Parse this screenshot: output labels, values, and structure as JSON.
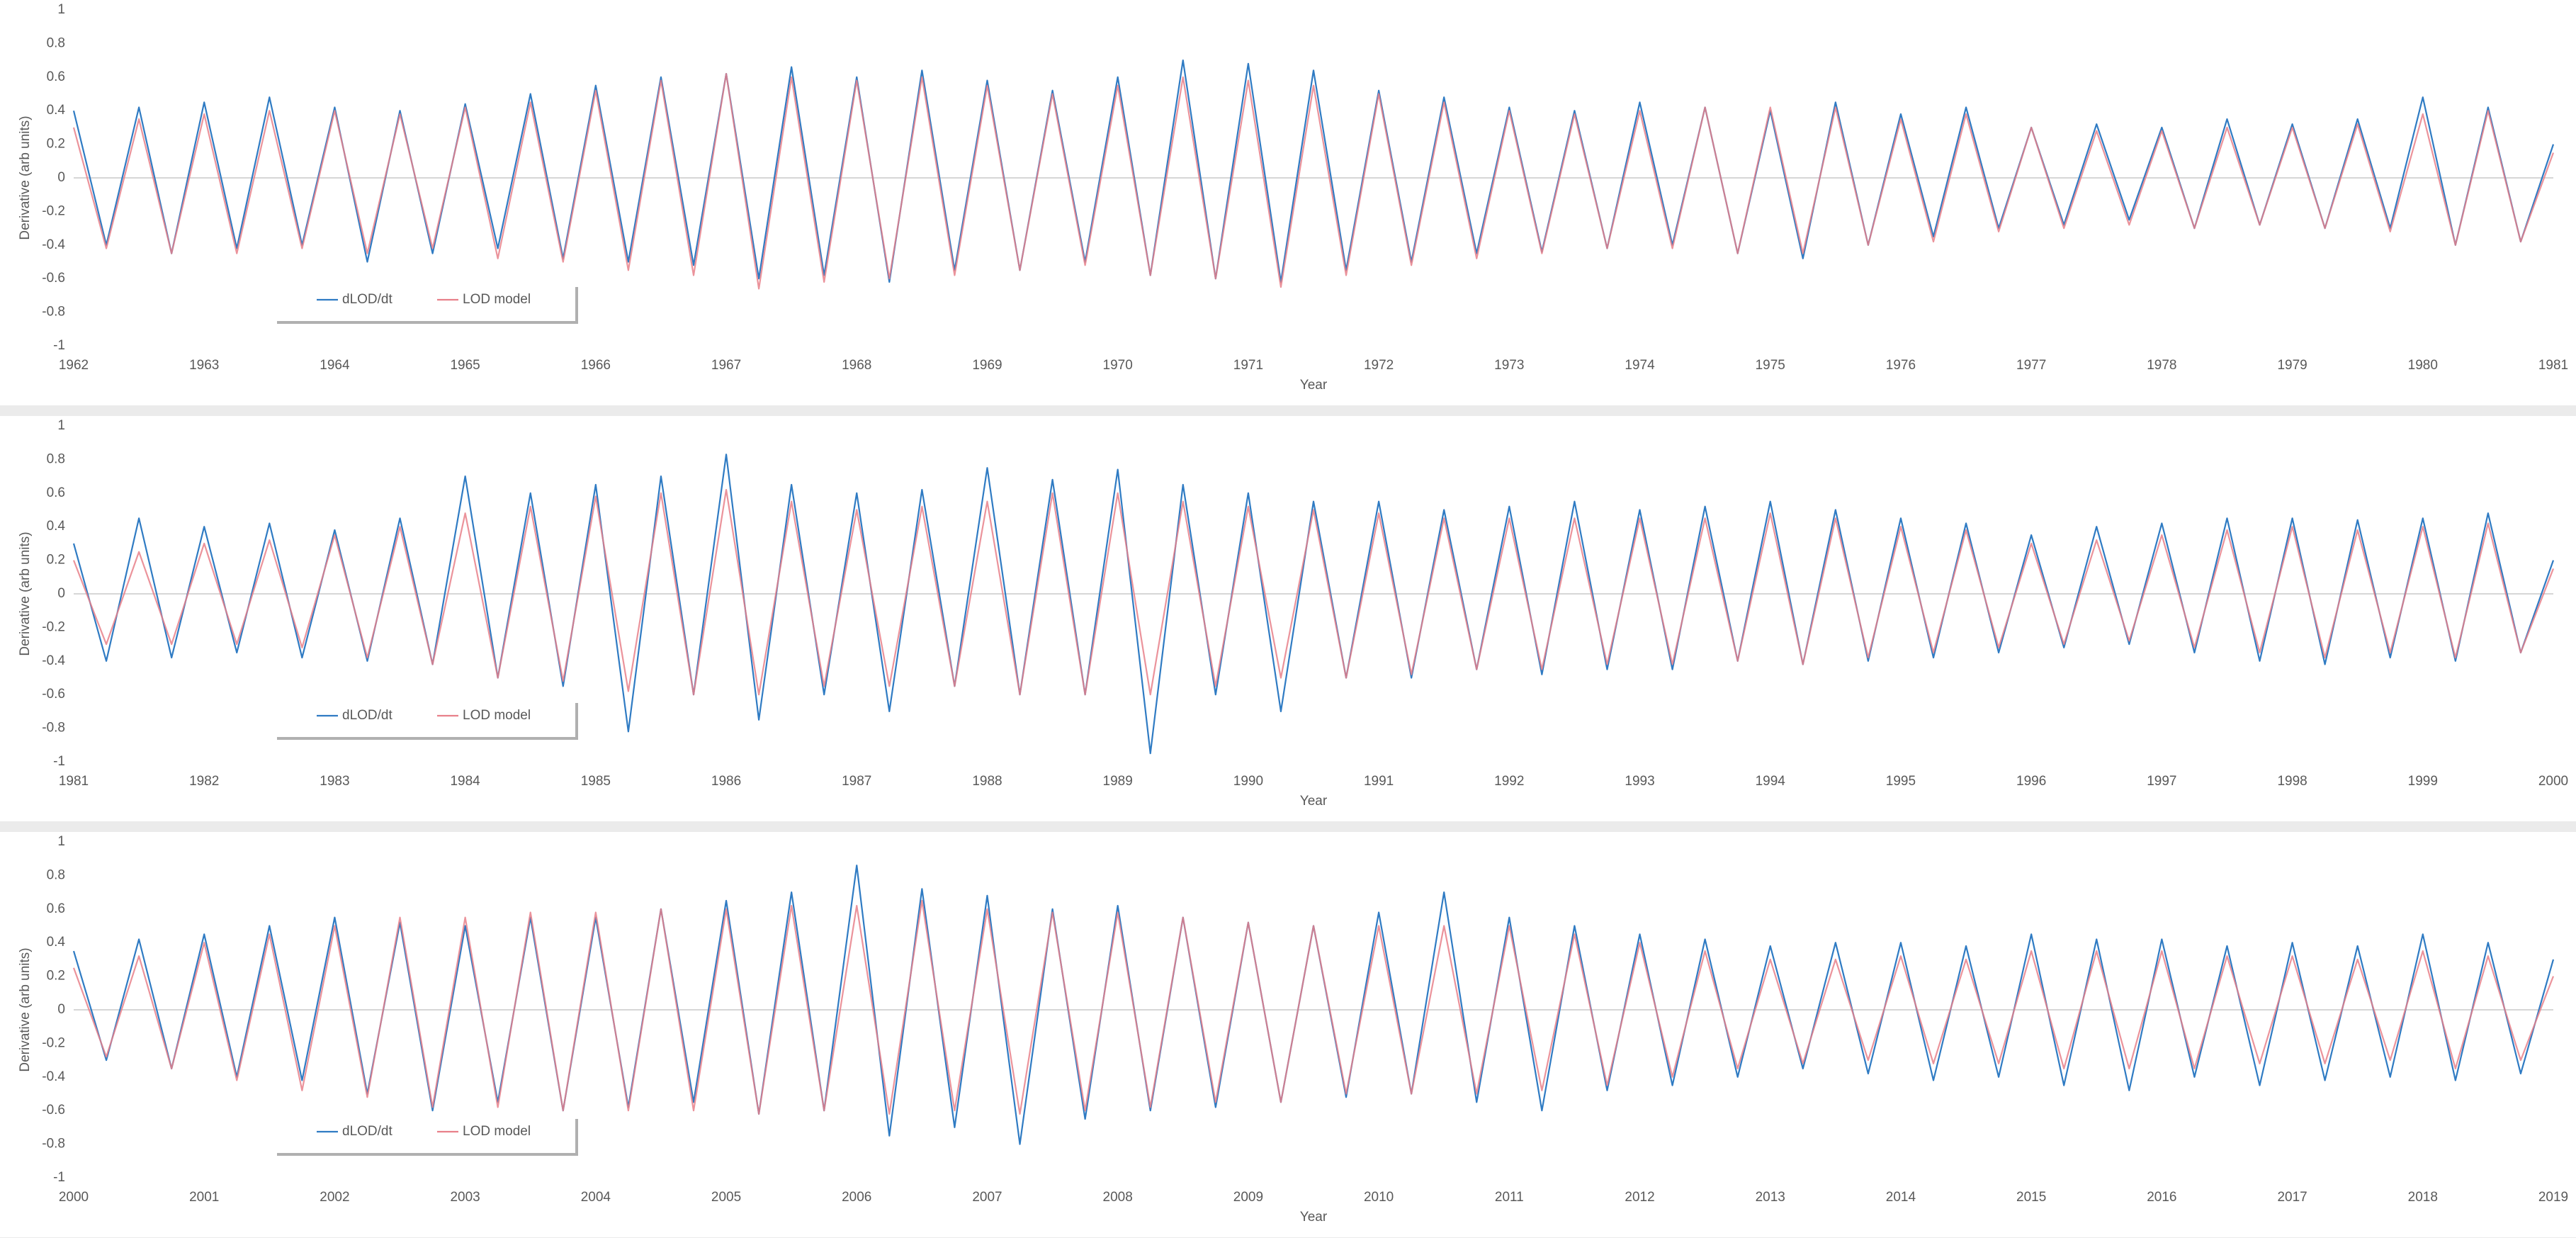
{
  "chart_data": [
    {
      "type": "line",
      "xlabel": "Year",
      "ylabel": "Derivative (arb units)",
      "xlim": [
        1962,
        1981
      ],
      "ylim": [
        -1,
        1
      ],
      "xticks": [
        1962,
        1963,
        1964,
        1965,
        1966,
        1967,
        1968,
        1969,
        1970,
        1971,
        1972,
        1973,
        1974,
        1975,
        1976,
        1977,
        1978,
        1979,
        1980,
        1981
      ],
      "yticks": [
        -1,
        -0.8,
        -0.6,
        -0.4,
        -0.2,
        0,
        0.2,
        0.4,
        0.6,
        0.8,
        1
      ],
      "zero_line": true,
      "legend": "lower left",
      "x": [
        1962,
        1962.25,
        1962.5,
        1962.75,
        1963,
        1963.25,
        1963.5,
        1963.75,
        1964,
        1964.25,
        1964.5,
        1964.75,
        1965,
        1965.25,
        1965.5,
        1965.75,
        1966,
        1966.25,
        1966.5,
        1966.75,
        1967,
        1967.25,
        1967.5,
        1967.75,
        1968,
        1968.25,
        1968.5,
        1968.75,
        1969,
        1969.25,
        1969.5,
        1969.75,
        1970,
        1970.25,
        1970.5,
        1970.75,
        1971,
        1971.25,
        1971.5,
        1971.75,
        1972,
        1972.25,
        1972.5,
        1972.75,
        1973,
        1973.25,
        1973.5,
        1973.75,
        1974,
        1974.25,
        1974.5,
        1974.75,
        1975,
        1975.25,
        1975.5,
        1975.75,
        1976,
        1976.25,
        1976.5,
        1976.75,
        1977,
        1977.25,
        1977.5,
        1977.75,
        1978,
        1978.25,
        1978.5,
        1978.75,
        1979,
        1979.25,
        1979.5,
        1979.75,
        1980,
        1980.25,
        1980.5,
        1980.75,
        1981
      ],
      "series": [
        {
          "name": "dLOD/dt",
          "color": "#2f7bc3",
          "values": [
            0.4,
            -0.4,
            0.42,
            -0.45,
            0.45,
            -0.42,
            0.48,
            -0.4,
            0.42,
            -0.5,
            0.4,
            -0.45,
            0.44,
            -0.42,
            0.5,
            -0.48,
            0.55,
            -0.5,
            0.6,
            -0.52,
            0.62,
            -0.6,
            0.66,
            -0.58,
            0.6,
            -0.62,
            0.64,
            -0.55,
            0.58,
            -0.55,
            0.52,
            -0.5,
            0.6,
            -0.58,
            0.7,
            -0.6,
            0.68,
            -0.62,
            0.64,
            -0.55,
            0.52,
            -0.5,
            0.48,
            -0.45,
            0.42,
            -0.44,
            0.4,
            -0.42,
            0.45,
            -0.4,
            0.42,
            -0.45,
            0.4,
            -0.48,
            0.45,
            -0.4,
            0.38,
            -0.35,
            0.42,
            -0.3,
            0.3,
            -0.28,
            0.32,
            -0.25,
            0.3,
            -0.3,
            0.35,
            -0.28,
            0.32,
            -0.3,
            0.35,
            -0.3,
            0.48,
            -0.4,
            0.42,
            -0.38,
            0.2
          ]
        },
        {
          "name": "LOD model",
          "color": "#e8808a",
          "values": [
            0.3,
            -0.42,
            0.35,
            -0.45,
            0.38,
            -0.45,
            0.4,
            -0.42,
            0.4,
            -0.45,
            0.38,
            -0.42,
            0.42,
            -0.48,
            0.45,
            -0.5,
            0.52,
            -0.55,
            0.58,
            -0.58,
            0.62,
            -0.66,
            0.6,
            -0.62,
            0.58,
            -0.6,
            0.6,
            -0.58,
            0.55,
            -0.55,
            0.5,
            -0.52,
            0.55,
            -0.58,
            0.6,
            -0.6,
            0.58,
            -0.65,
            0.55,
            -0.58,
            0.5,
            -0.52,
            0.45,
            -0.48,
            0.4,
            -0.45,
            0.38,
            -0.42,
            0.4,
            -0.42,
            0.42,
            -0.45,
            0.42,
            -0.45,
            0.42,
            -0.4,
            0.35,
            -0.38,
            0.38,
            -0.32,
            0.3,
            -0.3,
            0.28,
            -0.28,
            0.28,
            -0.3,
            0.3,
            -0.28,
            0.3,
            -0.3,
            0.32,
            -0.32,
            0.38,
            -0.4,
            0.4,
            -0.38,
            0.15
          ]
        }
      ]
    },
    {
      "type": "line",
      "xlabel": "Year",
      "ylabel": "Derivative (arb units)",
      "xlim": [
        1981,
        2000
      ],
      "ylim": [
        -1,
        1
      ],
      "xticks": [
        1981,
        1982,
        1983,
        1984,
        1985,
        1986,
        1987,
        1988,
        1989,
        1990,
        1991,
        1992,
        1993,
        1994,
        1995,
        1996,
        1997,
        1998,
        1999,
        2000
      ],
      "yticks": [
        -1,
        -0.8,
        -0.6,
        -0.4,
        -0.2,
        0,
        0.2,
        0.4,
        0.6,
        0.8,
        1
      ],
      "zero_line": true,
      "legend": "lower left",
      "x": [
        1981,
        1981.25,
        1981.5,
        1981.75,
        1982,
        1982.25,
        1982.5,
        1982.75,
        1983,
        1983.25,
        1983.5,
        1983.75,
        1984,
        1984.25,
        1984.5,
        1984.75,
        1985,
        1985.25,
        1985.5,
        1985.75,
        1986,
        1986.25,
        1986.5,
        1986.75,
        1987,
        1987.25,
        1987.5,
        1987.75,
        1988,
        1988.25,
        1988.5,
        1988.75,
        1989,
        1989.25,
        1989.5,
        1989.75,
        1990,
        1990.25,
        1990.5,
        1990.75,
        1991,
        1991.25,
        1991.5,
        1991.75,
        1992,
        1992.25,
        1992.5,
        1992.75,
        1993,
        1993.25,
        1993.5,
        1993.75,
        1994,
        1994.25,
        1994.5,
        1994.75,
        1995,
        1995.25,
        1995.5,
        1995.75,
        1996,
        1996.25,
        1996.5,
        1996.75,
        1997,
        1997.25,
        1997.5,
        1997.75,
        1998,
        1998.25,
        1998.5,
        1998.75,
        1999,
        1999.25,
        1999.5,
        1999.75,
        2000
      ],
      "series": [
        {
          "name": "dLOD/dt",
          "color": "#2f7bc3",
          "values": [
            0.3,
            -0.4,
            0.45,
            -0.38,
            0.4,
            -0.35,
            0.42,
            -0.38,
            0.38,
            -0.4,
            0.45,
            -0.42,
            0.7,
            -0.5,
            0.6,
            -0.55,
            0.65,
            -0.82,
            0.7,
            -0.6,
            0.83,
            -0.75,
            0.65,
            -0.6,
            0.6,
            -0.7,
            0.62,
            -0.55,
            0.75,
            -0.6,
            0.68,
            -0.6,
            0.74,
            -0.95,
            0.65,
            -0.6,
            0.6,
            -0.7,
            0.55,
            -0.5,
            0.55,
            -0.5,
            0.5,
            -0.45,
            0.52,
            -0.48,
            0.55,
            -0.45,
            0.5,
            -0.45,
            0.52,
            -0.4,
            0.55,
            -0.42,
            0.5,
            -0.4,
            0.45,
            -0.38,
            0.42,
            -0.35,
            0.35,
            -0.32,
            0.4,
            -0.3,
            0.42,
            -0.35,
            0.45,
            -0.4,
            0.45,
            -0.42,
            0.44,
            -0.38,
            0.45,
            -0.4,
            0.48,
            -0.35,
            0.2
          ]
        },
        {
          "name": "LOD model",
          "color": "#e8808a",
          "values": [
            0.2,
            -0.3,
            0.25,
            -0.3,
            0.3,
            -0.3,
            0.32,
            -0.32,
            0.35,
            -0.38,
            0.4,
            -0.42,
            0.48,
            -0.5,
            0.52,
            -0.52,
            0.58,
            -0.58,
            0.6,
            -0.6,
            0.62,
            -0.6,
            0.55,
            -0.55,
            0.5,
            -0.55,
            0.52,
            -0.55,
            0.55,
            -0.6,
            0.6,
            -0.6,
            0.6,
            -0.6,
            0.55,
            -0.55,
            0.52,
            -0.5,
            0.5,
            -0.5,
            0.48,
            -0.48,
            0.45,
            -0.45,
            0.45,
            -0.45,
            0.45,
            -0.42,
            0.45,
            -0.42,
            0.45,
            -0.4,
            0.48,
            -0.42,
            0.45,
            -0.38,
            0.4,
            -0.35,
            0.38,
            -0.32,
            0.3,
            -0.3,
            0.32,
            -0.28,
            0.35,
            -0.32,
            0.38,
            -0.35,
            0.4,
            -0.38,
            0.38,
            -0.35,
            0.4,
            -0.38,
            0.42,
            -0.35,
            0.15
          ]
        }
      ]
    },
    {
      "type": "line",
      "xlabel": "Year",
      "ylabel": "Derivative (arb units)",
      "xlim": [
        2000,
        2019
      ],
      "ylim": [
        -1,
        1
      ],
      "xticks": [
        2000,
        2001,
        2002,
        2003,
        2004,
        2005,
        2006,
        2007,
        2008,
        2009,
        2010,
        2011,
        2012,
        2013,
        2014,
        2015,
        2016,
        2017,
        2018,
        2019
      ],
      "yticks": [
        -1,
        -0.8,
        -0.6,
        -0.4,
        -0.2,
        0,
        0.2,
        0.4,
        0.6,
        0.8,
        1
      ],
      "zero_line": true,
      "legend": "lower left",
      "x": [
        2000,
        2000.25,
        2000.5,
        2000.75,
        2001,
        2001.25,
        2001.5,
        2001.75,
        2002,
        2002.25,
        2002.5,
        2002.75,
        2003,
        2003.25,
        2003.5,
        2003.75,
        2004,
        2004.25,
        2004.5,
        2004.75,
        2005,
        2005.25,
        2005.5,
        2005.75,
        2006,
        2006.25,
        2006.5,
        2006.75,
        2007,
        2007.25,
        2007.5,
        2007.75,
        2008,
        2008.25,
        2008.5,
        2008.75,
        2009,
        2009.25,
        2009.5,
        2009.75,
        2010,
        2010.25,
        2010.5,
        2010.75,
        2011,
        2011.25,
        2011.5,
        2011.75,
        2012,
        2012.25,
        2012.5,
        2012.75,
        2013,
        2013.25,
        2013.5,
        2013.75,
        2014,
        2014.25,
        2014.5,
        2014.75,
        2015,
        2015.25,
        2015.5,
        2015.75,
        2016,
        2016.25,
        2016.5,
        2016.75,
        2017,
        2017.25,
        2017.5,
        2017.75,
        2018,
        2018.25,
        2018.5,
        2018.75,
        2019
      ],
      "series": [
        {
          "name": "dLOD/dt",
          "color": "#2f7bc3",
          "values": [
            0.35,
            -0.3,
            0.42,
            -0.35,
            0.45,
            -0.4,
            0.5,
            -0.42,
            0.55,
            -0.5,
            0.52,
            -0.6,
            0.5,
            -0.55,
            0.55,
            -0.6,
            0.55,
            -0.58,
            0.6,
            -0.55,
            0.65,
            -0.62,
            0.7,
            -0.6,
            0.86,
            -0.75,
            0.72,
            -0.7,
            0.68,
            -0.8,
            0.6,
            -0.65,
            0.62,
            -0.6,
            0.55,
            -0.58,
            0.52,
            -0.55,
            0.5,
            -0.52,
            0.58,
            -0.5,
            0.7,
            -0.55,
            0.55,
            -0.6,
            0.5,
            -0.48,
            0.45,
            -0.45,
            0.42,
            -0.4,
            0.38,
            -0.35,
            0.4,
            -0.38,
            0.4,
            -0.42,
            0.38,
            -0.4,
            0.45,
            -0.45,
            0.42,
            -0.48,
            0.42,
            -0.4,
            0.38,
            -0.45,
            0.4,
            -0.42,
            0.38,
            -0.4,
            0.45,
            -0.42,
            0.4,
            -0.38,
            0.3
          ]
        },
        {
          "name": "LOD model",
          "color": "#e8808a",
          "values": [
            0.25,
            -0.28,
            0.32,
            -0.35,
            0.4,
            -0.42,
            0.45,
            -0.48,
            0.5,
            -0.52,
            0.55,
            -0.58,
            0.55,
            -0.58,
            0.58,
            -0.6,
            0.58,
            -0.6,
            0.6,
            -0.6,
            0.6,
            -0.62,
            0.62,
            -0.6,
            0.62,
            -0.62,
            0.65,
            -0.6,
            0.6,
            -0.62,
            0.58,
            -0.6,
            0.58,
            -0.58,
            0.55,
            -0.55,
            0.52,
            -0.55,
            0.5,
            -0.5,
            0.5,
            -0.5,
            0.5,
            -0.5,
            0.5,
            -0.48,
            0.45,
            -0.45,
            0.4,
            -0.4,
            0.35,
            -0.35,
            0.3,
            -0.32,
            0.3,
            -0.3,
            0.32,
            -0.32,
            0.3,
            -0.32,
            0.35,
            -0.35,
            0.35,
            -0.35,
            0.35,
            -0.35,
            0.32,
            -0.32,
            0.32,
            -0.32,
            0.3,
            -0.3,
            0.35,
            -0.35,
            0.32,
            -0.3,
            0.2
          ]
        }
      ]
    }
  ]
}
